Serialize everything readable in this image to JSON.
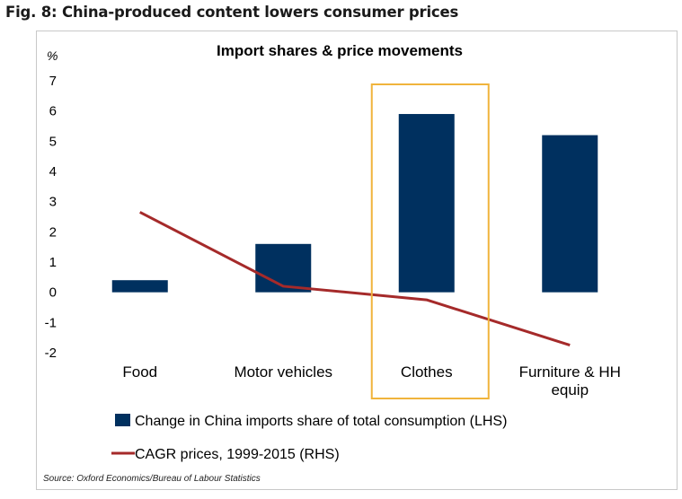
{
  "figure_title": "Fig. 8: China-produced content lowers consumer prices",
  "source": "Source: Oxford Economics/Bureau of Labour Statistics",
  "colors": {
    "bar": "#00305f",
    "line": "#a52a2a",
    "highlight": "#f0b43c",
    "frame": "#c8c8c8"
  },
  "chart_data": {
    "type": "bar",
    "title": "Import shares & price movements",
    "ylabel": "%",
    "xlabel": "",
    "ylim": [
      -2,
      7
    ],
    "yticks": [
      -2,
      -1,
      0,
      1,
      2,
      3,
      4,
      5,
      6,
      7
    ],
    "categories": [
      "Food",
      "Motor vehicles",
      "Clothes",
      "Furniture & HH equip"
    ],
    "category_label_lines": [
      [
        "Food"
      ],
      [
        "Motor vehicles"
      ],
      [
        "Clothes"
      ],
      [
        "Furniture & HH",
        "equip"
      ]
    ],
    "series": [
      {
        "name": "Change in China imports share of total consumption (LHS)",
        "type": "bar",
        "values": [
          0.4,
          1.6,
          5.9,
          5.2
        ]
      },
      {
        "name": "CAGR prices, 1999-2015 (RHS)",
        "type": "line",
        "values": [
          2.65,
          0.2,
          -0.25,
          -1.75
        ]
      }
    ],
    "highlighted_category": "Clothes",
    "legend_position": "bottom",
    "grid": false
  }
}
